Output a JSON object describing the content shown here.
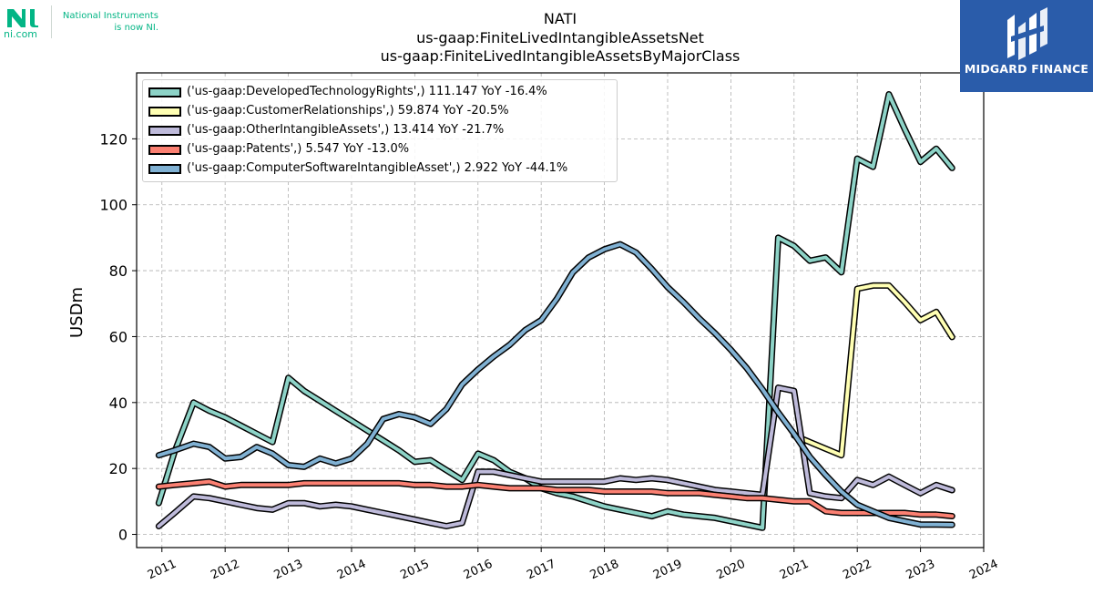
{
  "header": {
    "title_lines": [
      "NATI",
      "us-gaap:FiniteLivedIntangibleAssetsNet",
      "us-gaap:FiniteLivedIntangibleAssetsByMajorClass"
    ]
  },
  "logo": {
    "mark_text": "ni.com",
    "tagline_1": "National Instruments",
    "tagline_2": "is now NI.",
    "brand_color": "#03b585"
  },
  "brand": {
    "name": "MIDGARD FINANCE",
    "color": "#2a5caa"
  },
  "chart_data": {
    "type": "line",
    "xlabel": "",
    "ylabel": "USDm",
    "xlim": [
      2010.6,
      2024.0
    ],
    "ylim": [
      -4,
      140
    ],
    "x_ticks": [
      2011,
      2012,
      2013,
      2014,
      2015,
      2016,
      2017,
      2018,
      2019,
      2020,
      2021,
      2022,
      2023,
      2024
    ],
    "y_ticks": [
      0,
      20,
      40,
      60,
      80,
      100,
      120
    ],
    "grid": true,
    "legend_position": "top-left",
    "series": [
      {
        "name": "('us-gaap:DevelopedTechnologyRights',) 111.147 YoY -16.4%",
        "color": "#8dd3c7",
        "points": [
          [
            2010.95,
            9.5
          ],
          [
            2011.2,
            25
          ],
          [
            2011.5,
            40
          ],
          [
            2011.75,
            37.5
          ],
          [
            2012.0,
            35.5
          ],
          [
            2012.25,
            33
          ],
          [
            2012.5,
            30.5
          ],
          [
            2012.75,
            28
          ],
          [
            2013.0,
            47.5
          ],
          [
            2013.25,
            43.5
          ],
          [
            2013.5,
            40.5
          ],
          [
            2013.75,
            37.5
          ],
          [
            2014.0,
            34.5
          ],
          [
            2014.25,
            31.5
          ],
          [
            2014.5,
            28.5
          ],
          [
            2014.75,
            25.5
          ],
          [
            2015.0,
            22
          ],
          [
            2015.25,
            22.5
          ],
          [
            2015.5,
            19.5
          ],
          [
            2015.75,
            16.5
          ],
          [
            2016.0,
            24.5
          ],
          [
            2016.25,
            22.5
          ],
          [
            2016.5,
            19
          ],
          [
            2016.75,
            17
          ],
          [
            2017.0,
            14
          ],
          [
            2017.25,
            12.5
          ],
          [
            2017.5,
            11.5
          ],
          [
            2017.75,
            10
          ],
          [
            2018.0,
            8.5
          ],
          [
            2018.25,
            7.5
          ],
          [
            2018.5,
            6.5
          ],
          [
            2018.75,
            5.5
          ],
          [
            2019.0,
            7
          ],
          [
            2019.25,
            6
          ],
          [
            2019.5,
            5.5
          ],
          [
            2019.75,
            5
          ],
          [
            2020.0,
            4
          ],
          [
            2020.25,
            3
          ],
          [
            2020.5,
            2
          ],
          [
            2020.75,
            90
          ],
          [
            2021.0,
            87.5
          ],
          [
            2021.25,
            83
          ],
          [
            2021.5,
            84
          ],
          [
            2021.75,
            79.5
          ],
          [
            2022.0,
            114
          ],
          [
            2022.25,
            111.5
          ],
          [
            2022.5,
            133.5
          ],
          [
            2022.75,
            123
          ],
          [
            2023.0,
            113
          ],
          [
            2023.25,
            117
          ],
          [
            2023.5,
            111.147
          ]
        ]
      },
      {
        "name": "('us-gaap:CustomerRelationships',) 59.874 YoY -20.5%",
        "color": "#ffffb3",
        "points": [
          [
            2021.0,
            30
          ],
          [
            2021.25,
            28
          ],
          [
            2021.5,
            26
          ],
          [
            2021.75,
            24
          ],
          [
            2022.0,
            74.5
          ],
          [
            2022.25,
            75.5
          ],
          [
            2022.5,
            75.5
          ],
          [
            2022.75,
            70.5
          ],
          [
            2023.0,
            65
          ],
          [
            2023.25,
            67.5
          ],
          [
            2023.5,
            59.874
          ]
        ]
      },
      {
        "name": "('us-gaap:OtherIntangibleAssets',) 13.414 YoY -21.7%",
        "color": "#bebada",
        "points": [
          [
            2010.95,
            2.5
          ],
          [
            2011.2,
            6.5
          ],
          [
            2011.5,
            11.5
          ],
          [
            2011.75,
            11
          ],
          [
            2012.0,
            10
          ],
          [
            2012.25,
            9
          ],
          [
            2012.5,
            8
          ],
          [
            2012.75,
            7.5
          ],
          [
            2013.0,
            9.5
          ],
          [
            2013.25,
            9.5
          ],
          [
            2013.5,
            8.5
          ],
          [
            2013.75,
            9
          ],
          [
            2014.0,
            8.5
          ],
          [
            2014.25,
            7.5
          ],
          [
            2014.5,
            6.5
          ],
          [
            2014.75,
            5.5
          ],
          [
            2015.0,
            4.5
          ],
          [
            2015.25,
            3.5
          ],
          [
            2015.5,
            2.5
          ],
          [
            2015.75,
            3.5
          ],
          [
            2016.0,
            19
          ],
          [
            2016.25,
            19
          ],
          [
            2016.5,
            18
          ],
          [
            2016.75,
            17
          ],
          [
            2017.0,
            16
          ],
          [
            2017.25,
            16
          ],
          [
            2017.5,
            16
          ],
          [
            2017.75,
            16
          ],
          [
            2018.0,
            16
          ],
          [
            2018.25,
            17
          ],
          [
            2018.5,
            16.5
          ],
          [
            2018.75,
            17
          ],
          [
            2019.0,
            16.5
          ],
          [
            2019.25,
            15.5
          ],
          [
            2019.5,
            14.5
          ],
          [
            2019.75,
            13.5
          ],
          [
            2020.0,
            13
          ],
          [
            2020.25,
            12.5
          ],
          [
            2020.5,
            12
          ],
          [
            2020.75,
            44.5
          ],
          [
            2021.0,
            43.5
          ],
          [
            2021.25,
            12.5
          ],
          [
            2021.5,
            11.5
          ],
          [
            2021.75,
            11
          ],
          [
            2022.0,
            16.5
          ],
          [
            2022.25,
            15
          ],
          [
            2022.5,
            17.5
          ],
          [
            2022.75,
            15
          ],
          [
            2023.0,
            12.5
          ],
          [
            2023.25,
            15
          ],
          [
            2023.5,
            13.414
          ]
        ]
      },
      {
        "name": "('us-gaap:Patents',) 5.547 YoY -13.0%",
        "color": "#fb8072",
        "points": [
          [
            2010.95,
            14.5
          ],
          [
            2011.2,
            15
          ],
          [
            2011.5,
            15.5
          ],
          [
            2011.75,
            16
          ],
          [
            2012.0,
            14.5
          ],
          [
            2012.25,
            15
          ],
          [
            2012.5,
            15
          ],
          [
            2012.75,
            15
          ],
          [
            2013.0,
            15
          ],
          [
            2013.25,
            15.5
          ],
          [
            2013.5,
            15.5
          ],
          [
            2013.75,
            15.5
          ],
          [
            2014.0,
            15.5
          ],
          [
            2014.25,
            15.5
          ],
          [
            2014.5,
            15.5
          ],
          [
            2014.75,
            15.5
          ],
          [
            2015.0,
            15
          ],
          [
            2015.25,
            15
          ],
          [
            2015.5,
            14.5
          ],
          [
            2015.75,
            14.5
          ],
          [
            2016.0,
            15
          ],
          [
            2016.25,
            14.5
          ],
          [
            2016.5,
            14
          ],
          [
            2016.75,
            14
          ],
          [
            2017.0,
            14
          ],
          [
            2017.25,
            13.5
          ],
          [
            2017.5,
            13.5
          ],
          [
            2017.75,
            13.5
          ],
          [
            2018.0,
            13
          ],
          [
            2018.25,
            13
          ],
          [
            2018.5,
            13
          ],
          [
            2018.75,
            13
          ],
          [
            2019.0,
            12.5
          ],
          [
            2019.25,
            12.5
          ],
          [
            2019.5,
            12.5
          ],
          [
            2019.75,
            12
          ],
          [
            2020.0,
            11.5
          ],
          [
            2020.25,
            11
          ],
          [
            2020.5,
            11
          ],
          [
            2020.75,
            10.5
          ],
          [
            2021.0,
            10
          ],
          [
            2021.25,
            10
          ],
          [
            2021.5,
            7
          ],
          [
            2021.75,
            6.5
          ],
          [
            2022.0,
            6.5
          ],
          [
            2022.25,
            6.5
          ],
          [
            2022.5,
            6.5
          ],
          [
            2022.75,
            6.5
          ],
          [
            2023.0,
            6
          ],
          [
            2023.25,
            6
          ],
          [
            2023.5,
            5.547
          ]
        ]
      },
      {
        "name": "('us-gaap:ComputerSoftwareIntangibleAsset',) 2.922 YoY -44.1%",
        "color": "#80b1d3",
        "points": [
          [
            2010.95,
            24
          ],
          [
            2011.2,
            25.5
          ],
          [
            2011.5,
            27.5
          ],
          [
            2011.75,
            26.5
          ],
          [
            2012.0,
            23
          ],
          [
            2012.25,
            23.5
          ],
          [
            2012.5,
            26.5
          ],
          [
            2012.75,
            24.5
          ],
          [
            2013.0,
            21
          ],
          [
            2013.25,
            20.5
          ],
          [
            2013.5,
            23
          ],
          [
            2013.75,
            21.5
          ],
          [
            2014.0,
            23
          ],
          [
            2014.25,
            27.5
          ],
          [
            2014.5,
            35
          ],
          [
            2014.75,
            36.5
          ],
          [
            2015.0,
            35.5
          ],
          [
            2015.25,
            33.5
          ],
          [
            2015.5,
            38
          ],
          [
            2015.75,
            45.5
          ],
          [
            2016.0,
            50
          ],
          [
            2016.25,
            54
          ],
          [
            2016.5,
            57.5
          ],
          [
            2016.75,
            62
          ],
          [
            2017.0,
            65
          ],
          [
            2017.25,
            71.5
          ],
          [
            2017.5,
            79.5
          ],
          [
            2017.75,
            84
          ],
          [
            2018.0,
            86.5
          ],
          [
            2018.25,
            88
          ],
          [
            2018.5,
            85.5
          ],
          [
            2018.75,
            80.5
          ],
          [
            2019.0,
            75
          ],
          [
            2019.25,
            70.5
          ],
          [
            2019.5,
            65.5
          ],
          [
            2019.75,
            61
          ],
          [
            2020.0,
            56
          ],
          [
            2020.25,
            50.5
          ],
          [
            2020.5,
            44
          ],
          [
            2020.75,
            37
          ],
          [
            2021.0,
            30.5
          ],
          [
            2021.25,
            23.5
          ],
          [
            2021.5,
            18
          ],
          [
            2021.75,
            13
          ],
          [
            2022.0,
            9
          ],
          [
            2022.25,
            7
          ],
          [
            2022.5,
            5
          ],
          [
            2022.75,
            4
          ],
          [
            2023.0,
            3
          ],
          [
            2023.25,
            3
          ],
          [
            2023.5,
            2.922
          ]
        ]
      }
    ]
  }
}
